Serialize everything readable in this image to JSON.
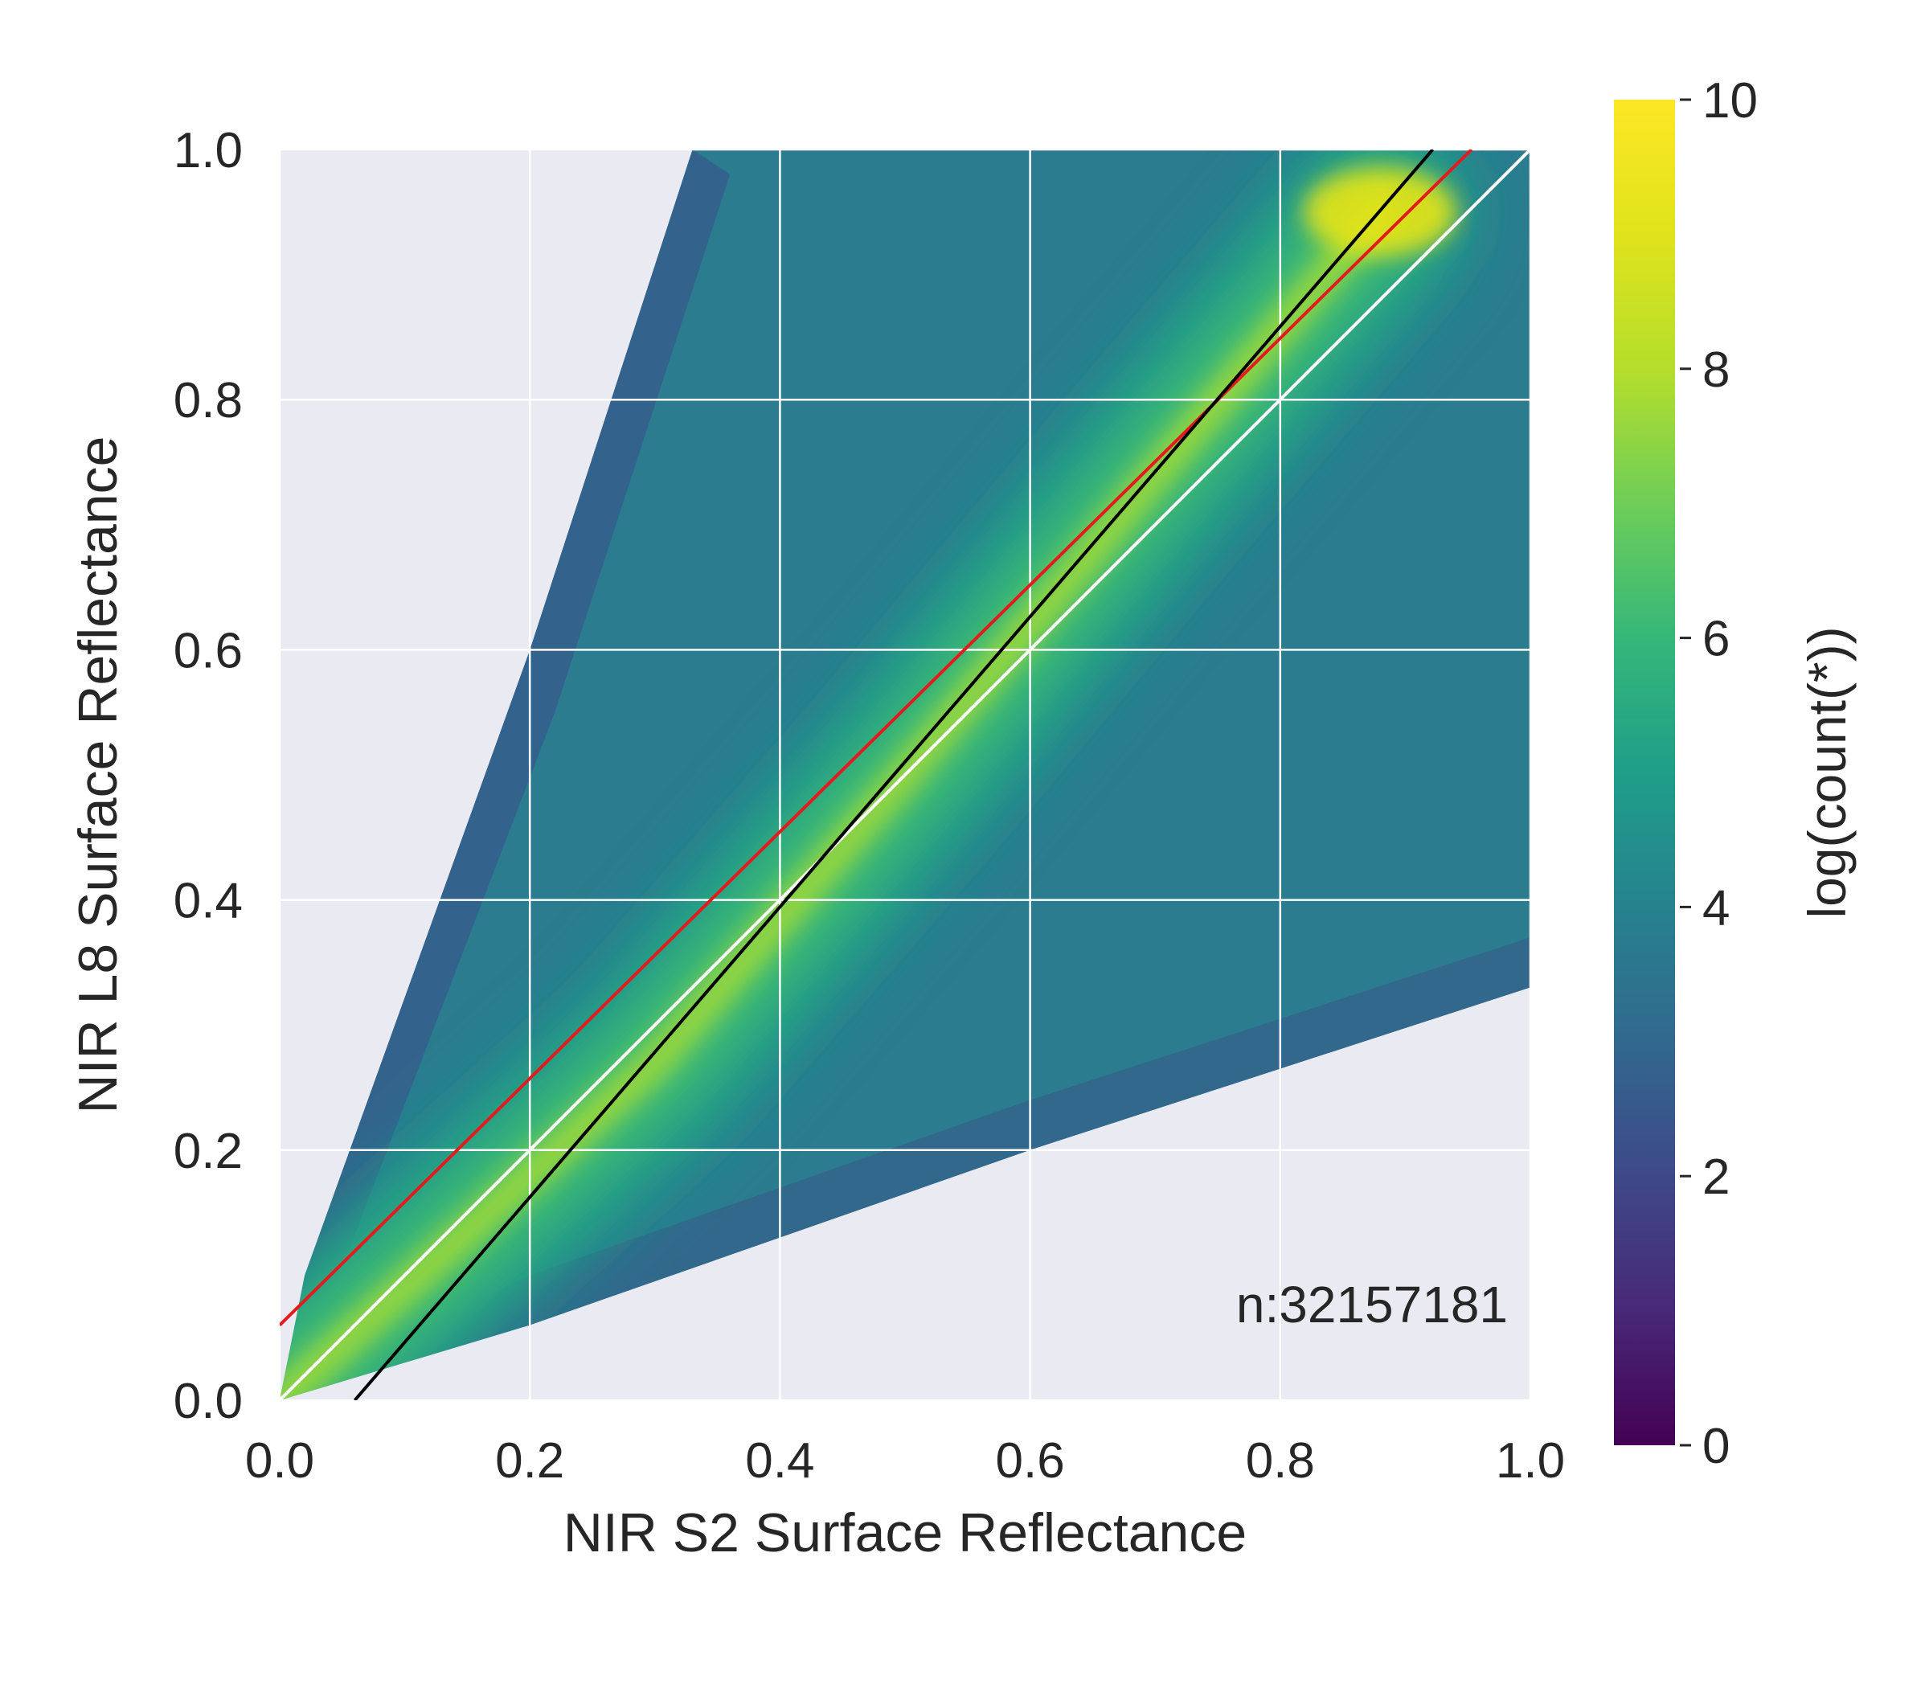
{
  "chart_data": {
    "type": "heatmap",
    "subtype": "2d-histogram",
    "xlabel": "NIR S2 Surface Reflectance",
    "ylabel": "NIR L8 Surface Reflectance",
    "xlim": [
      0.0,
      1.0
    ],
    "ylim": [
      0.0,
      1.0
    ],
    "x_ticks": [
      "0.0",
      "0.2",
      "0.4",
      "0.6",
      "0.8",
      "1.0"
    ],
    "y_ticks": [
      "0.0",
      "0.2",
      "0.4",
      "0.6",
      "0.8",
      "1.0"
    ],
    "grid": true,
    "background_color": "#eaeaf2",
    "colormap": "viridis",
    "colorbar": {
      "label": "log(count(*))",
      "range": [
        0,
        10
      ],
      "ticks": [
        "0",
        "2",
        "4",
        "6",
        "8",
        "10"
      ]
    },
    "annotation": "n:32157181",
    "density_region": {
      "upper_edge": [
        [
          0.0,
          0.0
        ],
        [
          0.02,
          0.1
        ],
        [
          0.2,
          0.6
        ],
        [
          0.33,
          1.0
        ],
        [
          1.0,
          1.0
        ]
      ],
      "lower_edge": [
        [
          0.0,
          0.0
        ],
        [
          0.2,
          0.06
        ],
        [
          0.6,
          0.2
        ],
        [
          1.0,
          0.33
        ]
      ]
    },
    "density_ridge": [
      [
        0.0,
        0.0
      ],
      [
        0.3,
        0.27
      ],
      [
        0.5,
        0.5
      ],
      [
        0.7,
        0.74
      ],
      [
        0.88,
        0.95
      ]
    ],
    "lines": [
      {
        "name": "1:1",
        "color": "#ffffff",
        "points": [
          [
            0.0,
            0.0
          ],
          [
            1.0,
            1.0
          ]
        ]
      },
      {
        "name": "regression-red",
        "color": "#e41a1c",
        "points": [
          [
            0.0,
            0.06
          ],
          [
            0.953,
            1.0
          ]
        ]
      },
      {
        "name": "regression-black",
        "color": "#000000",
        "points": [
          [
            0.06,
            0.0
          ],
          [
            0.922,
            1.0
          ]
        ]
      }
    ]
  }
}
